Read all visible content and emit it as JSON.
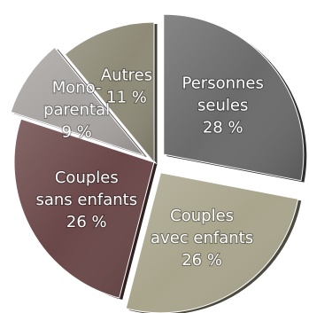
{
  "chart_data": {
    "type": "pie",
    "title": "",
    "legend": "none",
    "slices": [
      {
        "name": "Personnes seules",
        "label_lines": [
          "Personnes",
          "seules",
          "28 %"
        ],
        "value": 28,
        "color": "#6b6b6b",
        "exploded": true
      },
      {
        "name": "Couples avec enfants",
        "label_lines": [
          "Couples",
          "avec enfants",
          "26 %"
        ],
        "value": 26,
        "color": "#a9a58d",
        "exploded": true
      },
      {
        "name": "Couples sans enfants",
        "label_lines": [
          "Couples",
          "sans enfants",
          "26 %"
        ],
        "value": 26,
        "color": "#6a4748",
        "exploded": false
      },
      {
        "name": "Monoparental",
        "label_lines": [
          "Mono-",
          "parental",
          "9 %"
        ],
        "value": 9,
        "color": "#a8a4a2",
        "exploded": true
      },
      {
        "name": "Autres",
        "label_lines": [
          "Autres",
          "11 %"
        ],
        "value": 11,
        "color": "#8e8a77",
        "exploded": false
      }
    ]
  }
}
